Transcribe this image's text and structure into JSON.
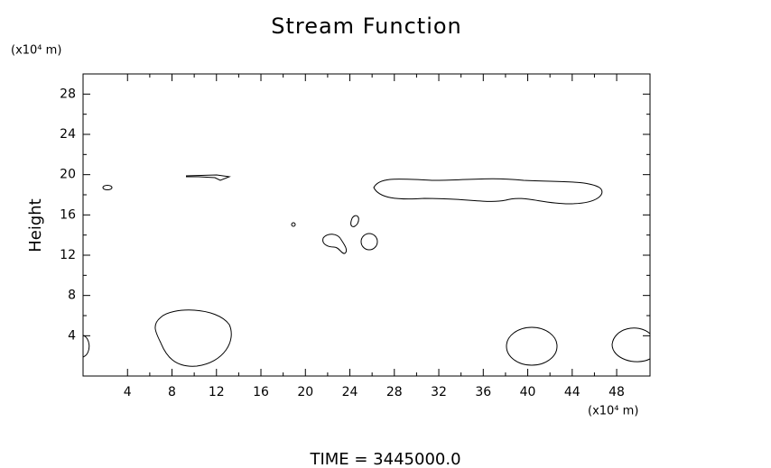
{
  "chart_data": {
    "type": "contour",
    "title": "Stream Function",
    "ylabel": "Height",
    "yunit": "(x10⁴ m)",
    "xunit": "(x10⁴ m)",
    "annotation": "TIME  =  3445000.0",
    "xlim": [
      0,
      51
    ],
    "ylim": [
      0,
      30
    ],
    "xticks": [
      4,
      8,
      12,
      16,
      20,
      24,
      28,
      32,
      36,
      40,
      44,
      48
    ],
    "yticks": [
      4,
      8,
      12,
      16,
      20,
      24,
      28
    ],
    "color": "#000000"
  }
}
